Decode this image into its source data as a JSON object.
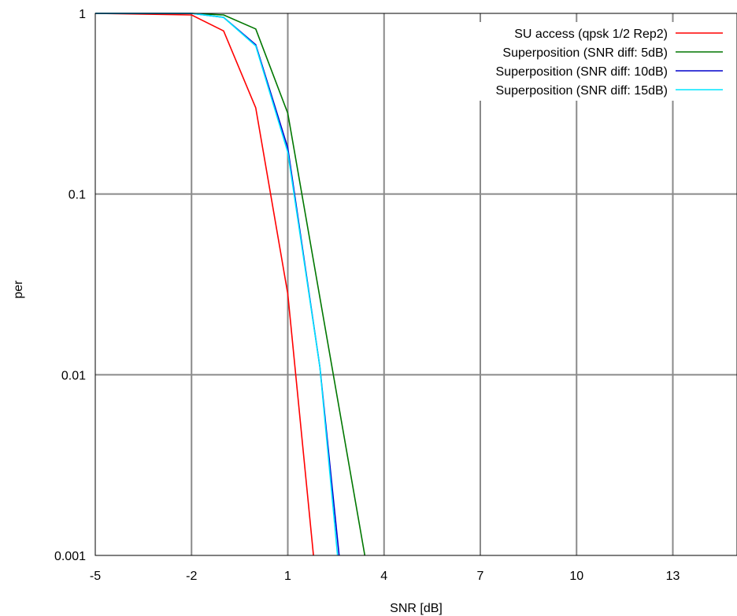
{
  "chart_data": {
    "type": "line",
    "title": "",
    "xlabel": "SNR [dB]",
    "ylabel": "per",
    "xlim": [
      -5,
      15
    ],
    "ylim": [
      0.001,
      1
    ],
    "yscale": "log",
    "grid": true,
    "legend_position": "top-right",
    "xticks": [
      -5,
      -2,
      1,
      4,
      7,
      10,
      13
    ],
    "xtick_labels": [
      "-5",
      "-2",
      "1",
      "4",
      "7",
      "10",
      "13"
    ],
    "yticks": [
      0.001,
      0.01,
      0.1,
      1
    ],
    "ytick_labels": [
      "0.001",
      "0.01",
      "0.1",
      "1"
    ],
    "series": [
      {
        "name": "SU access (qpsk 1/2 Rep2)",
        "color": "#ff0000",
        "x": [
          -5,
          -2,
          -1,
          0,
          1,
          1.8
        ],
        "y": [
          1,
          0.98,
          0.8,
          0.3,
          0.028,
          0.001
        ]
      },
      {
        "name": "Superposition (SNR diff: 5dB)",
        "color": "#007700",
        "x": [
          -5,
          -2,
          -1,
          0,
          1,
          3.4
        ],
        "y": [
          1,
          1,
          0.98,
          0.82,
          0.28,
          0.001
        ]
      },
      {
        "name": "Superposition (SNR diff: 10dB)",
        "color": "#0000cc",
        "x": [
          -5,
          -2,
          -1,
          0,
          1,
          2,
          2.6
        ],
        "y": [
          1,
          1,
          0.95,
          0.67,
          0.18,
          0.011,
          0.001
        ]
      },
      {
        "name": "Superposition (SNR diff: 15dB)",
        "color": "#00e5ff",
        "x": [
          -5,
          -2,
          -1,
          0,
          1,
          2,
          2.55
        ],
        "y": [
          1,
          1,
          0.95,
          0.66,
          0.17,
          0.011,
          0.001
        ]
      }
    ]
  }
}
